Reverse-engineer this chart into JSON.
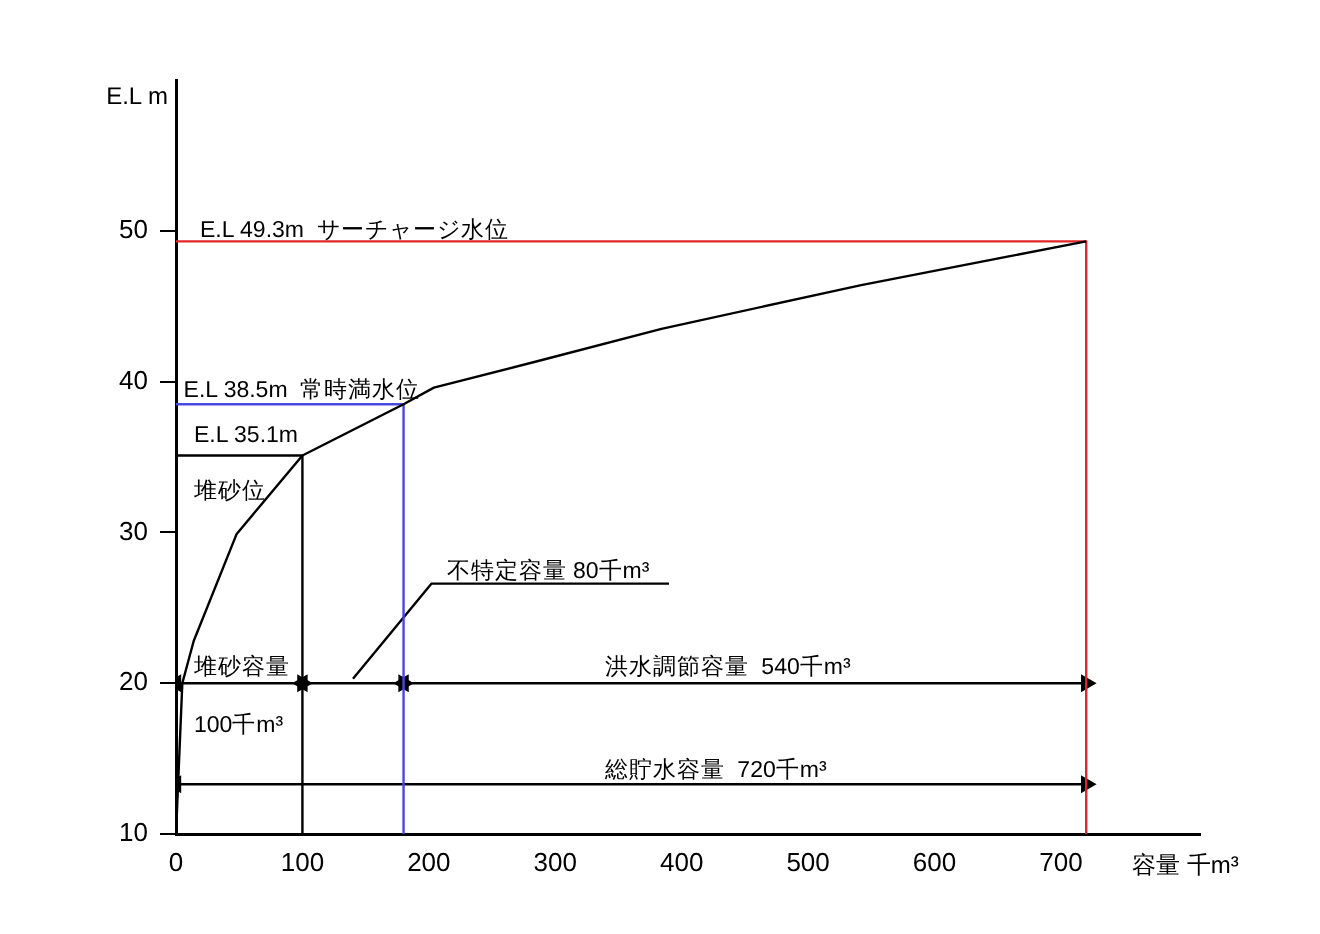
{
  "chart_data": {
    "type": "line",
    "xlabel": "容量 千m³",
    "ylabel": "E.L m",
    "xlim": [
      0,
      810
    ],
    "xticks": [
      0,
      100,
      200,
      300,
      400,
      500,
      600,
      700
    ],
    "ylim": [
      10,
      60
    ],
    "yticks": [
      10,
      20,
      30,
      40,
      50
    ],
    "grid": false,
    "legend": false,
    "marker": "none",
    "series": [
      {
        "color": "#000000",
        "x": [
          0,
          5,
          14,
          48,
          100,
          180,
          204,
          288,
          384,
          542,
          720
        ],
        "values": [
          10,
          20,
          22.8,
          29.9,
          35.1,
          38.5,
          39.6,
          41.4,
          43.5,
          46.4,
          49.3
        ]
      },
      {
        "color": "#e02828",
        "x": [
          0,
          720,
          720
        ],
        "values": [
          49.3,
          49.3,
          10
        ]
      },
      {
        "color": "#4848e0",
        "x": [
          0,
          180,
          180
        ],
        "values": [
          38.5,
          38.5,
          10
        ]
      },
      {
        "color": "#000000",
        "x": [
          0,
          100,
          100
        ],
        "values": [
          35.1,
          35.1,
          10
        ]
      },
      {
        "color": "#000000",
        "marker": "triangle",
        "x": [
          0,
          100
        ],
        "values": [
          20,
          20
        ]
      },
      {
        "color": "#000000",
        "marker": "triangle",
        "x": [
          100,
          180
        ],
        "values": [
          20,
          20
        ]
      },
      {
        "color": "#000000",
        "marker": "triangle",
        "x": [
          180,
          720
        ],
        "values": [
          20,
          20
        ]
      },
      {
        "color": "#000000",
        "marker": "triangle",
        "x": [
          0,
          720
        ],
        "values": [
          13.3,
          13.3
        ]
      },
      {
        "color": "#000000",
        "x": [
          140,
          202,
          390
        ],
        "values": [
          20.3,
          26.6,
          26.6
        ]
      }
    ],
    "annotations": [
      {
        "text": "E.L 49.3m  サーチャージ水位",
        "x": 19,
        "y": 49.6
      },
      {
        "text": "E.L 38.5m  常時満水位",
        "x": 6,
        "y": 39
      },
      "E.L 35.1m",
      "堆砂位",
      {
        "text": "堆砂容量",
        "x": 14,
        "y": 20.6
      },
      "100千m³",
      {
        "text": "不特定容量 80千m³",
        "x": 214,
        "y": 27
      },
      {
        "text": "洪水調節容量  540千m³",
        "x": 339,
        "y": 20.6
      },
      {
        "text": "総貯水容量  720千m³",
        "x": 339,
        "y": 13.8
      }
    ]
  }
}
